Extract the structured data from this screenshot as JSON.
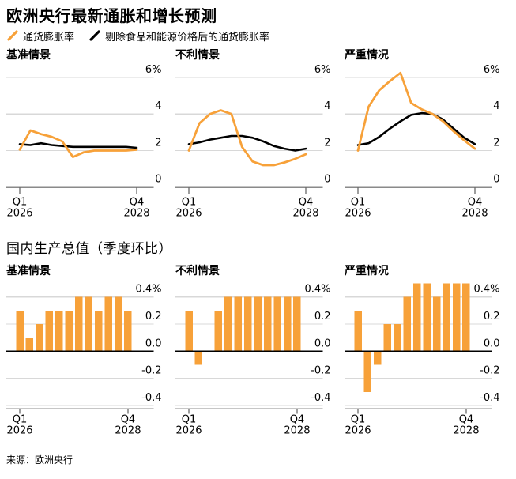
{
  "header": {
    "title": "欧洲央行最新通胀和增长预测",
    "legend": [
      {
        "key": "inflation",
        "label": "通货膨胀率",
        "color": "#f7a139"
      },
      {
        "key": "core_inflation",
        "label": "剔除食品和能源价格后的通货膨胀率",
        "color": "#000000"
      }
    ]
  },
  "gdp_section": {
    "title": "国内生产总值（季度环比）"
  },
  "footer": {
    "source": "来源：欧洲央行"
  },
  "style": {
    "accent_orange": "#f7a139",
    "line_black": "#000000",
    "gridline": "#d8d8d8",
    "line_axis": "#8a8a8a",
    "bar_axis": "#c6c6c6",
    "tick": "#3c3c3c"
  },
  "categories": [
    "2026Q1",
    "2026Q2",
    "2026Q3",
    "2026Q4",
    "2027Q1",
    "2027Q2",
    "2027Q3",
    "2027Q4",
    "2028Q1",
    "2028Q2",
    "2028Q3",
    "2028Q4"
  ],
  "x_ticks": [
    {
      "index": 0,
      "line1": "Q1",
      "line2": "2026"
    },
    {
      "index": 11,
      "line1": "Q4",
      "line2": "2028"
    }
  ],
  "chart_data": [
    {
      "id": "inflation-baseline",
      "type": "line",
      "title": "基准情景",
      "unit": "%",
      "ylim": [
        0,
        6.5
      ],
      "grid": true,
      "legend_position": "top",
      "y_ticks": [
        {
          "value": 6,
          "label": "6%"
        },
        {
          "value": 4,
          "label": "4"
        },
        {
          "value": 2,
          "label": "2"
        },
        {
          "value": 0,
          "label": "0"
        }
      ],
      "series": [
        {
          "key": "inflation",
          "name": "通货膨胀率",
          "color": "#f7a139",
          "values": [
            2.05,
            3.1,
            2.9,
            2.75,
            2.5,
            1.65,
            1.9,
            2.0,
            2.0,
            2.0,
            2.0,
            2.05
          ]
        },
        {
          "key": "core_inflation",
          "name": "剔除食品和能源价格后的通货膨胀率",
          "color": "#000000",
          "values": [
            2.35,
            2.3,
            2.4,
            2.3,
            2.25,
            2.2,
            2.2,
            2.2,
            2.2,
            2.2,
            2.2,
            2.15
          ]
        }
      ]
    },
    {
      "id": "inflation-adverse",
      "type": "line",
      "title": "不利情景",
      "unit": "%",
      "ylim": [
        0,
        6.5
      ],
      "grid": true,
      "legend_position": "top",
      "y_ticks": [
        {
          "value": 6,
          "label": "6%"
        },
        {
          "value": 4,
          "label": "4"
        },
        {
          "value": 2,
          "label": "2"
        },
        {
          "value": 0,
          "label": "0"
        }
      ],
      "series": [
        {
          "key": "inflation",
          "name": "通货膨胀率",
          "color": "#f7a139",
          "values": [
            2.0,
            3.5,
            4.0,
            4.2,
            4.0,
            2.2,
            1.4,
            1.2,
            1.2,
            1.35,
            1.55,
            1.8
          ]
        },
        {
          "key": "core_inflation",
          "name": "剔除食品和能源价格后的通货膨胀率",
          "color": "#000000",
          "values": [
            2.35,
            2.45,
            2.6,
            2.7,
            2.8,
            2.8,
            2.7,
            2.5,
            2.25,
            2.1,
            2.0,
            2.1
          ]
        }
      ]
    },
    {
      "id": "inflation-severe",
      "type": "line",
      "title": "严重情况",
      "unit": "%",
      "ylim": [
        0,
        6.5
      ],
      "grid": true,
      "legend_position": "top",
      "y_ticks": [
        {
          "value": 6,
          "label": "6%"
        },
        {
          "value": 4,
          "label": "4"
        },
        {
          "value": 2,
          "label": "2"
        },
        {
          "value": 0,
          "label": "0"
        }
      ],
      "series": [
        {
          "key": "inflation",
          "name": "通货膨胀率",
          "color": "#f7a139",
          "values": [
            2.0,
            4.4,
            5.3,
            5.8,
            6.25,
            4.6,
            4.25,
            4.0,
            3.6,
            3.05,
            2.55,
            2.1
          ]
        },
        {
          "key": "core_inflation",
          "name": "剔除食品和能源价格后的通货膨胀率",
          "color": "#000000",
          "values": [
            2.3,
            2.4,
            2.75,
            3.2,
            3.6,
            3.95,
            4.05,
            4.0,
            3.7,
            3.2,
            2.7,
            2.35
          ]
        }
      ]
    },
    {
      "id": "gdp-baseline",
      "type": "bar",
      "title": "基准情景",
      "unit": "%",
      "ylim": [
        -0.45,
        0.5
      ],
      "grid": true,
      "y_ticks": [
        {
          "value": 0.4,
          "label": "0.4%"
        },
        {
          "value": 0.2,
          "label": "0.2"
        },
        {
          "value": 0,
          "label": "0.0"
        },
        {
          "value": -0.2,
          "label": "-0.2"
        },
        {
          "value": -0.4,
          "label": "-0.4"
        }
      ],
      "series": [
        {
          "key": "gdp_qoq",
          "name": "国内生产总值（季度环比）",
          "color": "#f7a139",
          "values": [
            0.3,
            0.1,
            0.2,
            0.3,
            0.3,
            0.3,
            0.4,
            0.4,
            0.3,
            0.4,
            0.4,
            0.3
          ]
        }
      ]
    },
    {
      "id": "gdp-adverse",
      "type": "bar",
      "title": "不利情景",
      "unit": "%",
      "ylim": [
        -0.45,
        0.5
      ],
      "grid": true,
      "y_ticks": [
        {
          "value": 0.4,
          "label": "0.4%"
        },
        {
          "value": 0.2,
          "label": "0.2"
        },
        {
          "value": 0,
          "label": "0.0"
        },
        {
          "value": -0.2,
          "label": "-0.2"
        },
        {
          "value": -0.4,
          "label": "-0.4"
        }
      ],
      "series": [
        {
          "key": "gdp_qoq",
          "name": "国内生产总值（季度环比）",
          "color": "#f7a139",
          "values": [
            0.3,
            -0.1,
            0.0,
            0.3,
            0.4,
            0.4,
            0.4,
            0.4,
            0.4,
            0.4,
            0.4,
            0.4
          ]
        }
      ]
    },
    {
      "id": "gdp-severe",
      "type": "bar",
      "title": "严重情况",
      "unit": "%",
      "ylim": [
        -0.45,
        0.5
      ],
      "grid": true,
      "y_ticks": [
        {
          "value": 0.4,
          "label": "0.4%"
        },
        {
          "value": 0.2,
          "label": "0.2"
        },
        {
          "value": 0,
          "label": "0.0"
        },
        {
          "value": -0.2,
          "label": "-0.2"
        },
        {
          "value": -0.4,
          "label": "-0.4"
        }
      ],
      "series": [
        {
          "key": "gdp_qoq",
          "name": "国内生产总值（季度环比）",
          "color": "#f7a139",
          "values": [
            0.3,
            -0.3,
            -0.1,
            0.2,
            0.2,
            0.4,
            0.5,
            0.5,
            0.4,
            0.5,
            0.5,
            0.5
          ]
        }
      ]
    }
  ]
}
